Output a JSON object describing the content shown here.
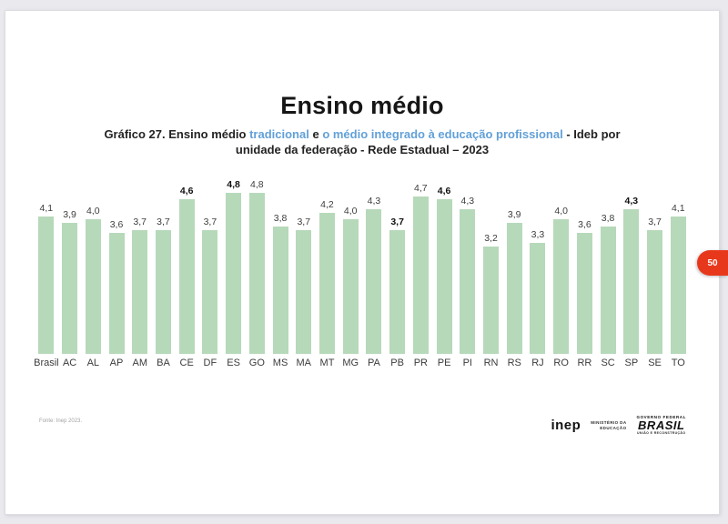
{
  "slide": {
    "title": "Ensino médio",
    "subtitle": {
      "part1": "Gráfico 27. Ensino médio ",
      "highlight1": "tradicional",
      "part2": " e ",
      "highlight2": "o médio integrado à educação profissional",
      "part3": " - Ideb por unidade da federação - Rede Estadual – 2023"
    },
    "page_badge": "50",
    "source_note": "Fonte: Inep 2023.",
    "footer_logos": {
      "inep": "inep",
      "ministerio_line1": "MINISTÉRIO DA",
      "ministerio_line2": "EDUCAÇÃO",
      "governo_federal": "GOVERNO FEDERAL",
      "brasil": "BRASIL",
      "uniao": "UNIÃO E RECONSTRUÇÃO"
    }
  },
  "colors": {
    "bar_fill": "#b6d9ba",
    "highlight_blue": "#62a0d8",
    "badge_red": "#e8381c"
  },
  "chart_data": {
    "type": "bar",
    "title": "Ideb por unidade da federação - Rede Estadual - 2023 (Ensino médio)",
    "categories": [
      "Brasil",
      "AC",
      "AL",
      "AP",
      "AM",
      "BA",
      "CE",
      "DF",
      "ES",
      "GO",
      "MS",
      "MA",
      "MT",
      "MG",
      "PA",
      "PB",
      "PR",
      "PE",
      "PI",
      "RN",
      "RS",
      "RJ",
      "RO",
      "RR",
      "SC",
      "SP",
      "SE",
      "TO"
    ],
    "values": [
      4.1,
      3.9,
      4.0,
      3.6,
      3.7,
      3.7,
      4.6,
      3.7,
      4.8,
      4.8,
      3.8,
      3.7,
      4.2,
      4.0,
      4.3,
      3.7,
      4.7,
      4.6,
      4.3,
      3.2,
      3.9,
      3.3,
      4.0,
      3.6,
      3.8,
      4.3,
      3.7,
      4.1
    ],
    "value_labels": [
      "4,1",
      "3,9",
      "4,0",
      "3,6",
      "3,7",
      "3,7",
      "4,6",
      "3,7",
      "4,8",
      "4,8",
      "3,8",
      "3,7",
      "4,2",
      "4,0",
      "4,3",
      "3,7",
      "4,7",
      "4,6",
      "4,3",
      "3,2",
      "3,9",
      "3,3",
      "4,0",
      "3,6",
      "3,8",
      "4,3",
      "3,7",
      "4,1"
    ],
    "bold_categories": [
      "CE",
      "ES",
      "PB",
      "PE",
      "SP"
    ],
    "xlabel": "",
    "ylabel": "",
    "ylim": [
      0,
      5
    ],
    "grid": false,
    "legend": false
  }
}
